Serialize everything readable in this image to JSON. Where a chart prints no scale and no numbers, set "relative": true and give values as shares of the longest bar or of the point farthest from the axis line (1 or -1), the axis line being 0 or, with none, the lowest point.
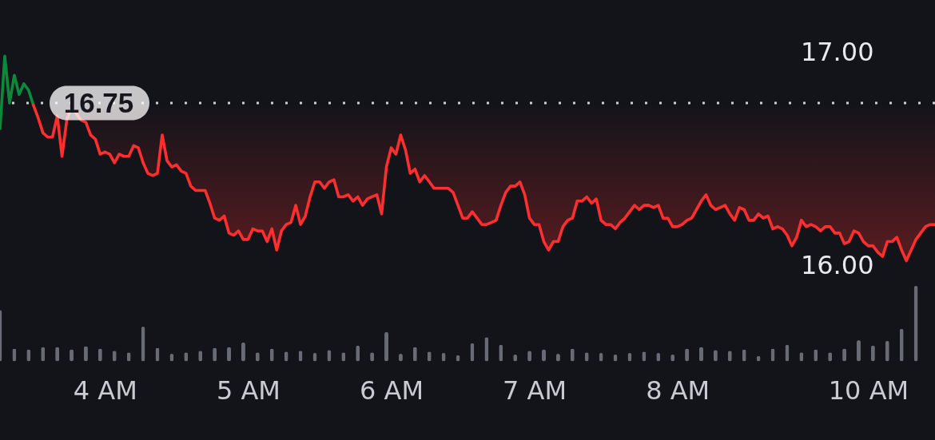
{
  "chart_data": [
    {
      "type": "line",
      "categories": [
        null,
        null,
        null,
        null,
        null,
        null,
        null,
        null,
        null,
        null,
        null,
        null,
        null,
        null,
        null,
        null,
        null,
        null,
        null,
        null,
        null,
        null,
        null,
        null,
        null,
        null,
        null,
        null,
        null,
        null,
        null,
        null,
        null,
        null,
        null,
        null,
        null,
        null,
        null,
        null,
        null,
        null,
        null,
        null,
        null,
        null,
        null,
        null,
        null,
        null,
        null,
        null,
        null,
        null,
        null,
        null,
        null,
        null,
        null,
        null,
        null,
        null,
        null,
        null,
        null,
        null,
        null,
        null,
        null,
        null,
        null,
        null,
        null,
        null,
        null,
        null,
        null,
        null,
        null,
        null,
        null,
        null,
        null,
        null,
        null,
        null,
        null,
        null,
        null,
        null,
        null,
        null,
        null,
        null,
        null,
        null,
        null,
        null,
        null,
        null,
        null,
        null,
        null,
        null,
        null,
        null,
        null,
        null,
        null,
        null,
        null,
        null,
        null,
        null,
        null,
        null,
        null,
        null,
        null,
        null,
        null,
        null,
        null,
        null,
        null,
        null,
        null,
        null,
        null,
        null,
        null,
        null,
        null,
        null,
        null,
        null,
        null,
        null,
        null,
        null,
        null,
        null,
        null,
        null,
        null,
        null,
        null,
        null,
        null,
        null,
        null,
        null,
        null,
        null,
        null,
        null,
        null,
        null,
        null,
        null,
        null,
        null,
        null,
        null,
        null,
        null,
        null,
        null,
        null,
        null,
        null,
        null,
        null,
        null,
        null,
        null,
        null,
        null,
        null,
        null,
        null,
        null,
        null,
        null,
        null,
        null,
        null,
        null,
        null,
        null,
        null,
        null,
        null,
        null,
        null,
        null,
        null
      ],
      "series": [
        {
          "color": "#0b8a3c",
          "values": [
            16.63,
            16.97,
            16.75,
            16.88,
            16.79,
            16.84,
            16.81,
            16.74,
            null,
            null,
            null,
            null,
            null,
            null,
            null,
            null,
            null,
            null,
            null,
            null,
            null,
            null,
            null,
            null,
            null,
            null,
            null,
            null,
            null,
            null,
            null,
            null,
            null,
            null,
            null,
            null,
            null,
            null,
            null,
            null,
            null,
            null,
            null,
            null,
            null,
            null,
            null,
            null,
            null,
            null,
            null,
            null,
            null,
            null,
            null,
            null,
            null,
            null,
            null,
            null,
            null,
            null,
            null,
            null,
            null,
            null,
            null,
            null,
            null,
            null,
            null,
            null,
            null,
            null,
            null,
            null,
            null,
            null,
            null,
            null,
            null,
            null,
            null,
            null,
            null,
            null,
            null,
            null,
            null,
            null,
            null,
            null,
            null,
            null,
            null,
            null,
            null,
            null,
            null,
            null,
            null,
            null,
            null,
            null,
            null,
            null,
            null,
            null,
            null,
            null,
            null,
            null,
            null,
            null,
            null,
            null,
            null,
            null,
            null,
            null,
            null,
            null,
            null,
            null,
            null,
            null,
            null,
            null,
            null,
            null,
            null,
            null,
            null,
            null,
            null,
            null,
            null,
            null,
            null,
            null,
            null,
            null,
            null,
            null,
            null,
            null,
            null,
            null,
            null,
            null,
            null,
            null,
            null,
            null,
            null,
            null,
            null,
            null,
            null,
            null,
            null,
            null,
            null,
            null,
            null,
            null,
            null,
            null,
            null,
            null,
            null,
            null,
            null,
            null,
            null,
            null,
            null,
            null,
            null,
            null,
            null,
            null,
            null,
            null,
            null,
            null,
            null,
            null,
            null,
            null,
            null,
            null,
            null,
            null,
            null,
            null,
            null
          ]
        },
        {
          "color": "#ff2f2f",
          "values": [
            null,
            null,
            null,
            null,
            null,
            null,
            null,
            16.74,
            16.68,
            16.61,
            16.59,
            16.59,
            16.69,
            16.5,
            16.67,
            16.73,
            null,
            16.67,
            16.66,
            16.6,
            16.58,
            16.51,
            16.52,
            16.51,
            16.47,
            16.51,
            16.5,
            16.5,
            16.55,
            16.54,
            16.47,
            16.42,
            16.41,
            16.42,
            16.6,
            16.48,
            16.45,
            16.46,
            16.43,
            16.42,
            16.36,
            16.34,
            16.34,
            16.34,
            16.28,
            16.21,
            16.2,
            16.22,
            16.14,
            16.13,
            16.15,
            16.11,
            16.11,
            16.16,
            16.15,
            16.15,
            16.1,
            16.16,
            16.06,
            16.15,
            16.18,
            16.19,
            16.27,
            16.18,
            16.22,
            16.31,
            16.38,
            16.38,
            16.35,
            16.38,
            16.39,
            16.31,
            16.31,
            16.32,
            16.29,
            16.31,
            16.27,
            16.3,
            16.31,
            16.32,
            16.23,
            16.45,
            16.54,
            16.51,
            16.6,
            16.53,
            16.42,
            16.44,
            16.38,
            16.41,
            16.38,
            16.35,
            16.35,
            16.35,
            16.35,
            16.33,
            16.27,
            16.21,
            16.21,
            16.24,
            16.21,
            16.18,
            16.18,
            16.19,
            16.2,
            16.27,
            16.33,
            16.36,
            16.36,
            16.38,
            16.32,
            16.21,
            16.18,
            16.18,
            16.1,
            16.06,
            16.1,
            16.1,
            16.17,
            16.2,
            16.21,
            16.29,
            16.29,
            16.31,
            16.28,
            16.3,
            16.2,
            16.18,
            16.18,
            16.16,
            16.19,
            16.21,
            16.24,
            16.27,
            16.25,
            16.27,
            16.27,
            16.26,
            16.27,
            16.21,
            16.21,
            16.17,
            16.17,
            16.18,
            16.2,
            16.21,
            16.25,
            16.29,
            16.32,
            16.27,
            16.25,
            16.26,
            16.27,
            16.23,
            16.2,
            16.26,
            16.25,
            16.2,
            16.2,
            16.23,
            16.21,
            16.22,
            16.16,
            16.17,
            16.16,
            16.13,
            16.08,
            16.12,
            16.2,
            16.17,
            16.18,
            16.17,
            16.15,
            16.17,
            16.17,
            16.14,
            16.14,
            16.09,
            16.1,
            16.15,
            16.14,
            16.1,
            16.08,
            16.08,
            16.05,
            16.03,
            16.1,
            16.1,
            16.12,
            16.06,
            16.01,
            16.06,
            16.11,
            16.14,
            16.17,
            16.18,
            16.18
          ],
          "lower": [
            null,
            null,
            null,
            null,
            null,
            null,
            null,
            16.74,
            16.68,
            16.61,
            16.59,
            16.59,
            16.69,
            16.5,
            16.67,
            16.73,
            16.71,
            16.67,
            16.66,
            16.6,
            16.58,
            16.51,
            16.52,
            16.51,
            16.47,
            16.51,
            16.5,
            16.5,
            16.55,
            16.54,
            16.47,
            16.42,
            16.41,
            16.42,
            16.6,
            16.48,
            16.45,
            16.46,
            16.43,
            16.42,
            16.36,
            16.34,
            16.34,
            16.34,
            16.28,
            16.21,
            16.2,
            16.22,
            16.14,
            16.13,
            16.15,
            16.11,
            16.11,
            16.16,
            16.15,
            16.15,
            16.1,
            16.16,
            16.06,
            16.15,
            16.18,
            16.19,
            16.27,
            16.18,
            16.22,
            16.31,
            16.38,
            16.38,
            16.35,
            16.38,
            16.39,
            16.31,
            16.31,
            16.32,
            16.29,
            16.31,
            16.27,
            16.3,
            16.31,
            16.32,
            16.23,
            16.45,
            16.54,
            16.51,
            16.6,
            16.53,
            16.42,
            16.44,
            16.38,
            16.41,
            16.38,
            16.35,
            16.35,
            16.35,
            16.35,
            16.33,
            16.27,
            16.21,
            16.21,
            16.24,
            16.21,
            16.18,
            16.18,
            16.19,
            16.2,
            16.27,
            16.33,
            16.36,
            16.36,
            16.38,
            16.32,
            16.21,
            16.18,
            16.18,
            16.1,
            16.06,
            16.1,
            16.1,
            16.17,
            16.2,
            16.21,
            16.29,
            16.29,
            16.31,
            16.28,
            16.3,
            16.2,
            16.18,
            16.18,
            16.16,
            16.19,
            16.21,
            16.24,
            16.27,
            16.25,
            16.27,
            16.27,
            16.26,
            16.27,
            16.21,
            16.21,
            16.17,
            16.17,
            16.18,
            16.2,
            16.21,
            16.25,
            16.29,
            16.32,
            16.27,
            16.25,
            16.26,
            16.27,
            16.23,
            16.2,
            16.26,
            16.25,
            16.2,
            16.2,
            16.23,
            16.21,
            16.22,
            16.16,
            16.17,
            16.16,
            16.13,
            16.08,
            16.12,
            16.2,
            16.17,
            16.18,
            16.17,
            16.15,
            16.17,
            16.17,
            16.14,
            16.14,
            16.09,
            16.1,
            16.15,
            16.14,
            16.1,
            16.08,
            16.08,
            16.05,
            16.03,
            16.1,
            16.1,
            16.12,
            16.06,
            16.01,
            16.06,
            16.11,
            16.14,
            16.17,
            16.18,
            16.18
          ],
          "upper": [
            null,
            null,
            null,
            null,
            null,
            null,
            null,
            16.75,
            16.75,
            16.75,
            16.75,
            16.75,
            16.75,
            16.75,
            16.75,
            16.75,
            16.75,
            16.75,
            16.75,
            16.75,
            16.75,
            16.75,
            16.75,
            16.75,
            16.75,
            16.75,
            16.75,
            16.75,
            16.75,
            16.75,
            16.75,
            16.75,
            16.75,
            16.75,
            16.75,
            16.75,
            16.75,
            16.75,
            16.75,
            16.75,
            16.75,
            16.75,
            16.75,
            16.75,
            16.75,
            16.75,
            16.75,
            16.75,
            16.75,
            16.75,
            16.75,
            16.75,
            16.75,
            16.75,
            16.75,
            16.75,
            16.75,
            16.75,
            16.75,
            16.75,
            16.75,
            16.75,
            16.75,
            16.75,
            16.75,
            16.75,
            16.75,
            16.75,
            16.75,
            16.75,
            16.75,
            16.75,
            16.75,
            16.75,
            16.75,
            16.75,
            16.75,
            16.75,
            16.75,
            16.75,
            16.75,
            16.75,
            16.75,
            16.75,
            16.75,
            16.75,
            16.75,
            16.75,
            16.75,
            16.75,
            16.75,
            16.75,
            16.75,
            16.75,
            16.75,
            16.75,
            16.75,
            16.75,
            16.75,
            16.75,
            16.75,
            16.75,
            16.75,
            16.75,
            16.75,
            16.75,
            16.75,
            16.75,
            16.75,
            16.75,
            16.75,
            16.75,
            16.75,
            16.75,
            16.75,
            16.75,
            16.75,
            16.75,
            16.75,
            16.75,
            16.75,
            16.75,
            16.75,
            16.75,
            16.75,
            16.75,
            16.75,
            16.75,
            16.75,
            16.75,
            16.75,
            16.75,
            16.75,
            16.75,
            16.75,
            16.75,
            16.75,
            16.75,
            16.75,
            16.75,
            16.75,
            16.75,
            16.75,
            16.75,
            16.75,
            16.75,
            16.75,
            16.75,
            16.75,
            16.75,
            16.75,
            16.75,
            16.75,
            16.75,
            16.75,
            16.75,
            16.75,
            16.75,
            16.75,
            16.75,
            16.75,
            16.75,
            16.75,
            16.75,
            16.75,
            16.75,
            16.75,
            16.75,
            16.75,
            16.75,
            16.75,
            16.75,
            16.75,
            16.75,
            16.75,
            16.75,
            16.75,
            16.75,
            16.75,
            16.75,
            16.75,
            16.75,
            16.75,
            16.75,
            16.75,
            16.75,
            16.75,
            16.75,
            16.75,
            16.75,
            16.75,
            16.75,
            16.75,
            16.75,
            16.75,
            16.75,
            16.75
          ]
        }
      ],
      "ylim": [
        16,
        17
      ],
      "yticks": [
        {
          "value": 16,
          "label": "16.00"
        },
        {
          "value": 17,
          "label": "17.00"
        }
      ],
      "ref_lines": [
        {
          "axis": "y",
          "value": 16.75,
          "label": "16.75",
          "line_style": "dotted",
          "color": "#cfd0d4"
        }
      ]
    },
    {
      "type": "bar",
      "relative": true,
      "color": "#686b73",
      "categories": [
        null,
        null,
        null,
        null,
        null,
        null,
        null,
        null,
        null,
        null,
        null,
        null,
        null,
        null,
        null,
        null,
        null,
        null,
        null,
        null,
        null,
        null,
        "4 AM",
        null,
        null,
        null,
        null,
        null,
        null,
        null,
        null,
        null,
        null,
        null,
        null,
        null,
        null,
        null,
        null,
        null,
        null,
        null,
        null,
        null,
        null,
        null,
        null,
        null,
        null,
        null,
        null,
        null,
        "5 AM",
        null,
        null,
        null,
        null,
        null,
        null,
        null,
        null,
        null,
        null,
        null,
        null,
        null,
        null,
        null,
        null,
        null,
        null,
        null,
        null,
        null,
        null,
        null,
        null,
        null,
        null,
        null,
        null,
        null,
        "6 AM",
        null,
        null,
        null,
        null,
        null,
        null,
        null,
        null,
        null,
        null,
        null,
        null,
        null,
        null,
        null,
        null,
        null,
        null,
        null,
        null,
        null,
        null,
        null,
        null,
        null,
        null,
        null,
        null,
        null,
        "7 AM",
        null,
        null,
        null,
        null,
        null,
        null,
        null,
        null,
        null,
        null,
        null,
        null,
        null,
        null,
        null,
        null,
        null,
        null,
        null,
        null,
        null,
        null,
        null,
        null,
        null,
        null,
        null,
        null,
        null,
        "8 AM",
        null,
        null,
        null,
        null,
        null,
        null,
        null,
        null,
        null,
        null,
        null,
        null,
        null,
        null,
        null,
        null,
        null,
        null,
        null,
        null,
        null,
        null,
        null,
        null,
        null,
        null,
        null,
        null,
        null,
        null,
        null,
        null,
        null,
        null,
        null,
        null,
        null,
        null,
        null,
        "10 AM",
        null,
        null,
        null,
        null,
        null,
        null,
        null,
        null,
        null,
        null,
        null,
        null,
        null,
        null
      ],
      "values": [
        0.68,
        null,
        null,
        0.17,
        null,
        null,
        0.16,
        null,
        null,
        0.19,
        null,
        null,
        0.19,
        null,
        null,
        0.16,
        null,
        null,
        0.2,
        null,
        null,
        0.17,
        null,
        null,
        0.14,
        null,
        null,
        0.12,
        null,
        null,
        0.46,
        null,
        null,
        0.18,
        null,
        null,
        0.1,
        null,
        null,
        0.12,
        null,
        null,
        0.14,
        null,
        null,
        0.18,
        null,
        null,
        0.19,
        null,
        null,
        0.25,
        null,
        null,
        0.12,
        null,
        null,
        0.17,
        null,
        null,
        0.13,
        null,
        null,
        0.14,
        null,
        null,
        0.11,
        null,
        null,
        0.15,
        null,
        null,
        0.12,
        null,
        null,
        0.21,
        null,
        null,
        0.12,
        null,
        null,
        0.39,
        null,
        null,
        0.1,
        null,
        null,
        0.19,
        null,
        null,
        0.13,
        null,
        null,
        0.11,
        null,
        null,
        0.08,
        null,
        null,
        0.24,
        null,
        null,
        0.32,
        null,
        null,
        0.22,
        null,
        null,
        0.09,
        null,
        null,
        0.14,
        null,
        null,
        0.16,
        null,
        null,
        0.1,
        null,
        null,
        0.17,
        null,
        null,
        0.12,
        null,
        null,
        0.11,
        null,
        null,
        0.09,
        null,
        null,
        0.11,
        null,
        null,
        0.13,
        null,
        null,
        0.11,
        null,
        null,
        0.09,
        null,
        null,
        0.17,
        null,
        null,
        0.19,
        null,
        null,
        0.15,
        null,
        null,
        0.14,
        null,
        null,
        0.16,
        null,
        null,
        0.07,
        null,
        null,
        0.17,
        null,
        null,
        0.22,
        null,
        null,
        0.12,
        null,
        null,
        0.16,
        null,
        null,
        0.12,
        null,
        null,
        0.17,
        null,
        null,
        0.28,
        null,
        null,
        0.21,
        null,
        null,
        0.27,
        null,
        null,
        0.43,
        null,
        null,
        1,
        null,
        null,
        null,
        null
      ]
    }
  ]
}
